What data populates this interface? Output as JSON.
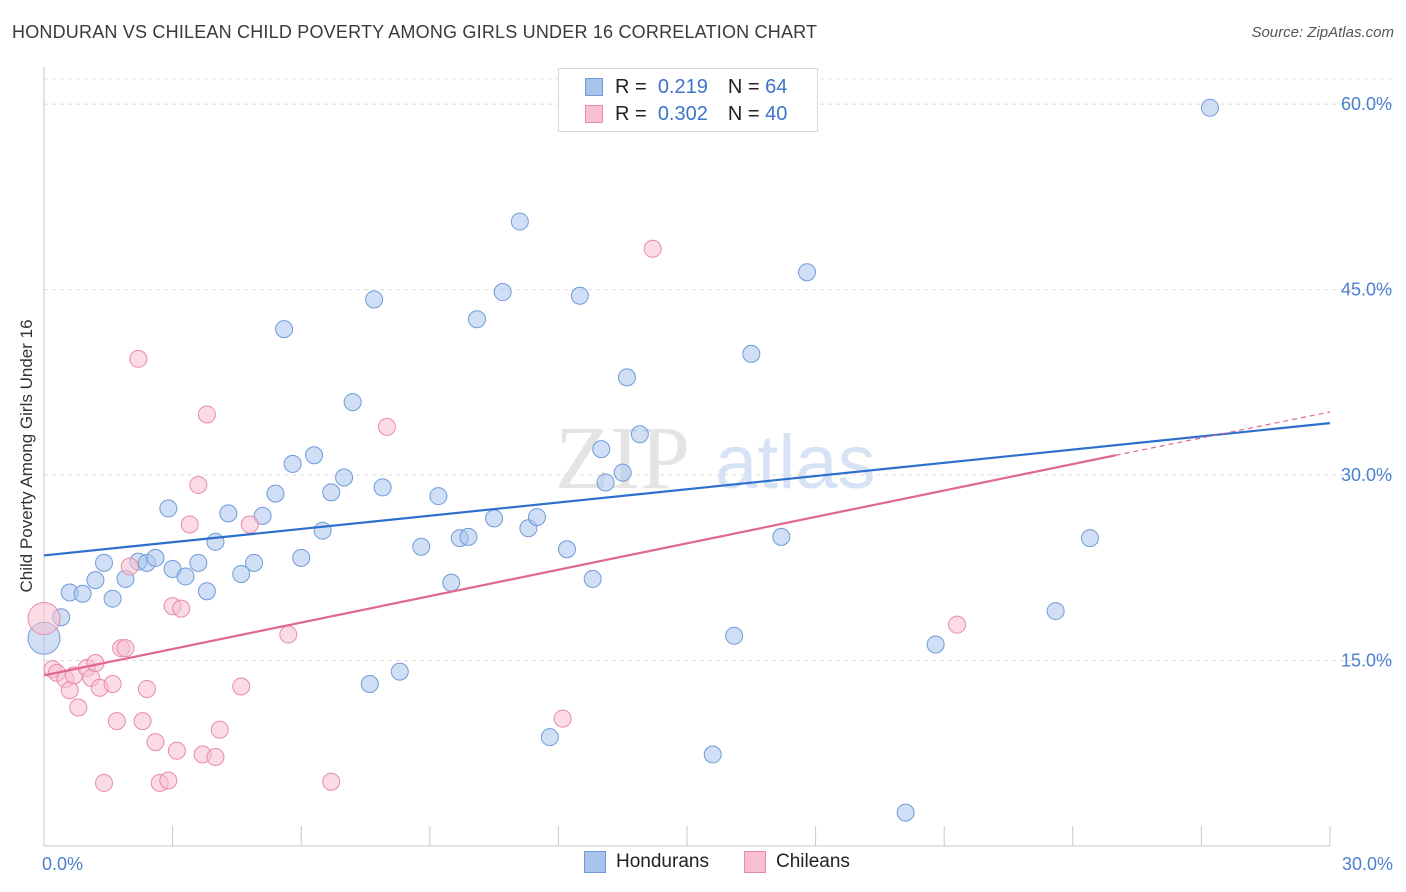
{
  "title": "HONDURAN VS CHILEAN CHILD POVERTY AMONG GIRLS UNDER 16 CORRELATION CHART",
  "source": "Source: ZipAtlas.com",
  "watermark": {
    "zip": "ZIP",
    "atlas": "atlas"
  },
  "legend": {
    "rows": [
      {
        "r_label": "R =",
        "r_value": "0.219",
        "n_label": "N =",
        "n_value": "64",
        "color": "#a9c4ec",
        "border": "#6f9bd8"
      },
      {
        "r_label": "R =",
        "r_value": "0.302",
        "n_label": "N =",
        "n_value": "40",
        "color": "#f7bfd0",
        "border": "#e98aa9"
      }
    ]
  },
  "bottom_legend": [
    {
      "label": "Hondurans",
      "color": "#a9c4ec",
      "border": "#6f9bd8"
    },
    {
      "label": "Chileans",
      "color": "#f7bfd0",
      "border": "#e98aa9"
    }
  ],
  "chart_data": {
    "type": "scatter",
    "title": "HONDURAN VS CHILEAN CHILD POVERTY AMONG GIRLS UNDER 16 CORRELATION CHART",
    "xlabel": "",
    "ylabel": "Child Poverty Among Girls Under 16",
    "xlim": [
      0,
      30
    ],
    "ylim": [
      0,
      63
    ],
    "x_tick_labels": [
      {
        "value": 0,
        "label": "0.0%"
      },
      {
        "value": 30,
        "label": "30.0%"
      }
    ],
    "y_ticks": [
      {
        "value": 15,
        "label": "15.0%"
      },
      {
        "value": 30,
        "label": "30.0%"
      },
      {
        "value": 45,
        "label": "45.0%"
      },
      {
        "value": 60,
        "label": "60.0%"
      }
    ],
    "series": [
      {
        "name": "Hondurans",
        "color": "#a9c4ec",
        "stroke": "#6f9bd8",
        "trend": {
          "x0": 0,
          "y0": 23.5,
          "x1": 30,
          "y1": 34.2,
          "color": "#2d6fcd"
        },
        "points": [
          {
            "x": 0.0,
            "y": 16.8
          },
          {
            "x": 0.4,
            "y": 18.5
          },
          {
            "x": 0.6,
            "y": 20.5
          },
          {
            "x": 0.9,
            "y": 20.4
          },
          {
            "x": 1.2,
            "y": 21.5
          },
          {
            "x": 1.4,
            "y": 22.9
          },
          {
            "x": 1.6,
            "y": 20.0
          },
          {
            "x": 1.9,
            "y": 21.6
          },
          {
            "x": 2.2,
            "y": 23.0
          },
          {
            "x": 2.4,
            "y": 22.9
          },
          {
            "x": 2.6,
            "y": 23.3
          },
          {
            "x": 2.9,
            "y": 27.3
          },
          {
            "x": 3.0,
            "y": 22.4
          },
          {
            "x": 3.3,
            "y": 21.8
          },
          {
            "x": 3.6,
            "y": 22.9
          },
          {
            "x": 3.8,
            "y": 20.6
          },
          {
            "x": 4.0,
            "y": 24.6
          },
          {
            "x": 4.3,
            "y": 26.9
          },
          {
            "x": 4.6,
            "y": 22.0
          },
          {
            "x": 4.9,
            "y": 22.9
          },
          {
            "x": 5.1,
            "y": 26.7
          },
          {
            "x": 5.4,
            "y": 28.5
          },
          {
            "x": 5.6,
            "y": 41.8
          },
          {
            "x": 5.8,
            "y": 30.9
          },
          {
            "x": 6.0,
            "y": 23.3
          },
          {
            "x": 6.3,
            "y": 31.6
          },
          {
            "x": 6.5,
            "y": 25.5
          },
          {
            "x": 6.7,
            "y": 28.6
          },
          {
            "x": 7.0,
            "y": 29.8
          },
          {
            "x": 7.2,
            "y": 35.9
          },
          {
            "x": 7.6,
            "y": 13.1
          },
          {
            "x": 7.7,
            "y": 44.2
          },
          {
            "x": 7.9,
            "y": 29.0
          },
          {
            "x": 8.3,
            "y": 14.1
          },
          {
            "x": 8.8,
            "y": 24.2
          },
          {
            "x": 9.2,
            "y": 28.3
          },
          {
            "x": 9.5,
            "y": 21.3
          },
          {
            "x": 9.7,
            "y": 24.9
          },
          {
            "x": 9.9,
            "y": 25.0
          },
          {
            "x": 10.1,
            "y": 42.6
          },
          {
            "x": 10.5,
            "y": 26.5
          },
          {
            "x": 10.7,
            "y": 44.8
          },
          {
            "x": 11.1,
            "y": 50.5
          },
          {
            "x": 11.3,
            "y": 25.7
          },
          {
            "x": 11.5,
            "y": 26.6
          },
          {
            "x": 11.8,
            "y": 8.8
          },
          {
            "x": 12.2,
            "y": 24.0
          },
          {
            "x": 12.5,
            "y": 44.5
          },
          {
            "x": 12.8,
            "y": 21.6
          },
          {
            "x": 13.0,
            "y": 32.1
          },
          {
            "x": 13.1,
            "y": 29.4
          },
          {
            "x": 13.5,
            "y": 30.2
          },
          {
            "x": 13.6,
            "y": 37.9
          },
          {
            "x": 13.9,
            "y": 33.3
          },
          {
            "x": 15.6,
            "y": 7.4
          },
          {
            "x": 16.1,
            "y": 17.0
          },
          {
            "x": 16.5,
            "y": 39.8
          },
          {
            "x": 17.2,
            "y": 25.0
          },
          {
            "x": 17.8,
            "y": 46.4
          },
          {
            "x": 20.1,
            "y": 2.7
          },
          {
            "x": 20.8,
            "y": 16.3
          },
          {
            "x": 23.6,
            "y": 19.0
          },
          {
            "x": 24.4,
            "y": 24.9
          },
          {
            "x": 27.2,
            "y": 59.7
          }
        ]
      },
      {
        "name": "Chileans",
        "color": "#f7bfd0",
        "stroke": "#e98aa9",
        "trend": {
          "x0": 0,
          "y0": 13.8,
          "x1": 25.0,
          "y1": 31.6,
          "color": "#e0688f"
        },
        "trend_ext": {
          "x0": 25.0,
          "y0": 31.6,
          "x1": 30.0,
          "y1": 35.1
        },
        "points": [
          {
            "x": 0.0,
            "y": 18.4
          },
          {
            "x": 0.2,
            "y": 14.3
          },
          {
            "x": 0.3,
            "y": 14.0
          },
          {
            "x": 0.5,
            "y": 13.5
          },
          {
            "x": 0.6,
            "y": 12.6
          },
          {
            "x": 0.7,
            "y": 13.8
          },
          {
            "x": 0.8,
            "y": 11.2
          },
          {
            "x": 1.0,
            "y": 14.4
          },
          {
            "x": 1.1,
            "y": 13.6
          },
          {
            "x": 1.2,
            "y": 14.8
          },
          {
            "x": 1.3,
            "y": 12.8
          },
          {
            "x": 1.4,
            "y": 5.1
          },
          {
            "x": 1.6,
            "y": 13.1
          },
          {
            "x": 1.7,
            "y": 10.1
          },
          {
            "x": 1.8,
            "y": 16.0
          },
          {
            "x": 1.9,
            "y": 16.0
          },
          {
            "x": 2.0,
            "y": 22.6
          },
          {
            "x": 2.2,
            "y": 39.4
          },
          {
            "x": 2.3,
            "y": 10.1
          },
          {
            "x": 2.4,
            "y": 12.7
          },
          {
            "x": 2.6,
            "y": 8.4
          },
          {
            "x": 2.7,
            "y": 5.1
          },
          {
            "x": 2.9,
            "y": 5.3
          },
          {
            "x": 3.0,
            "y": 19.4
          },
          {
            "x": 3.1,
            "y": 7.7
          },
          {
            "x": 3.2,
            "y": 19.2
          },
          {
            "x": 3.4,
            "y": 26.0
          },
          {
            "x": 3.6,
            "y": 29.2
          },
          {
            "x": 3.7,
            "y": 7.4
          },
          {
            "x": 3.8,
            "y": 34.9
          },
          {
            "x": 4.0,
            "y": 7.2
          },
          {
            "x": 4.1,
            "y": 9.4
          },
          {
            "x": 4.6,
            "y": 12.9
          },
          {
            "x": 4.8,
            "y": 26.0
          },
          {
            "x": 5.7,
            "y": 17.1
          },
          {
            "x": 6.7,
            "y": 5.2
          },
          {
            "x": 8.0,
            "y": 33.9
          },
          {
            "x": 12.1,
            "y": 10.3
          },
          {
            "x": 14.2,
            "y": 48.3
          },
          {
            "x": 21.3,
            "y": 17.9
          }
        ]
      }
    ]
  }
}
